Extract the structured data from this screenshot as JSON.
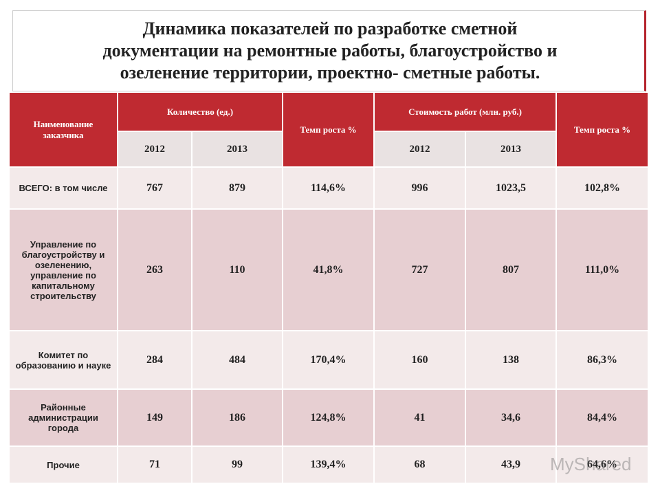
{
  "title": {
    "lines": [
      "Динамика показателей по разработке сметной",
      "документации  на ремонтные работы, благоустройство и",
      "озеленение территории, проектно- сметные работы."
    ]
  },
  "table": {
    "header": {
      "name": "Наименование заказчика",
      "quantity": "Количество (ед.)",
      "growth1": "Темп роста %",
      "cost": "Стоимость работ (млн. руб.)",
      "growth2": "Темп роста %",
      "years": [
        "2012",
        "2013",
        "2012",
        "2013"
      ]
    },
    "rows": [
      [
        "ВСЕГО: в том числе",
        "767",
        "879",
        "114,6%",
        "996",
        "1023,5",
        "102,8%"
      ],
      [
        "Управление по благоустройству и озеленению, управление по капитальному строительству",
        "263",
        "110",
        "41,8%",
        "727",
        "807",
        "111,0%"
      ],
      [
        "Комитет по образованию и науке",
        "284",
        "484",
        "170,4%",
        "160",
        "138",
        "86,3%"
      ],
      [
        "Районные администрации города",
        "149",
        "186",
        "124,8%",
        "41",
        "34,6",
        "84,4%"
      ],
      [
        "Прочие",
        "71",
        "99",
        "139,4%",
        "68",
        "43,9",
        "64,6%"
      ]
    ]
  },
  "watermark": "MyShared"
}
